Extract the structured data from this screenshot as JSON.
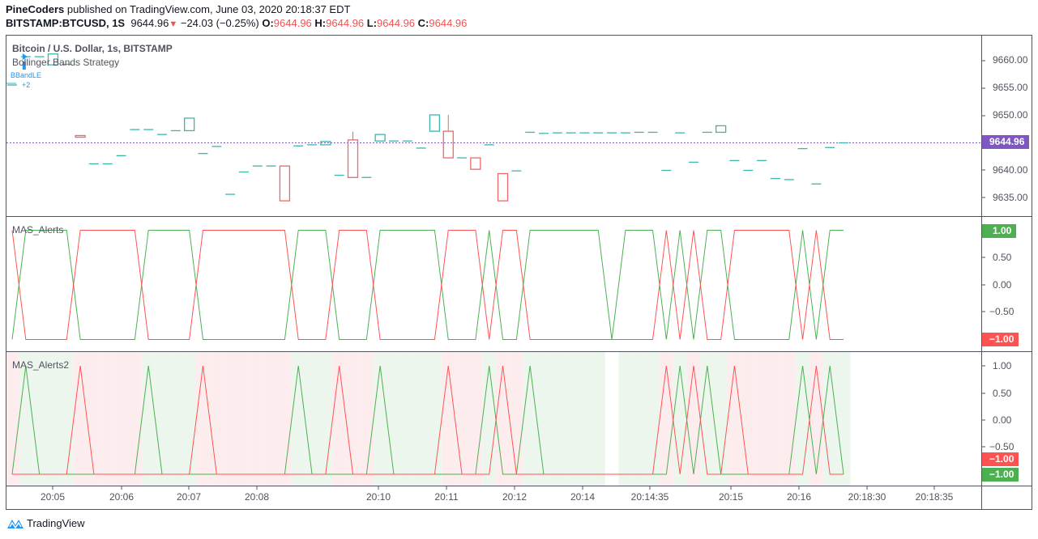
{
  "header": {
    "author": "PineCoders",
    "published_text": "published on TradingView.com, June 03, 2020 20:18:37 EDT",
    "symbol": "BITSTAMP:BTCUSD, 1S",
    "last": "9644.96",
    "change": "−24.03 (−0.25%)",
    "o_label": "O:",
    "o": "9644.96",
    "h_label": "H:",
    "h": "9644.96",
    "l_label": "L:",
    "l": "9644.96",
    "c_label": "C:",
    "c": "9644.96"
  },
  "main_pane": {
    "title": "Bitcoin / U.S. Dollar, 1s, BITSTAMP",
    "study": "Bollinger Bands Strategy",
    "marker_label": "BBandLE",
    "marker_count": "+2",
    "price_labels": [
      "9660.00",
      "9655.00",
      "9650.00",
      "9640.00",
      "9635.00"
    ],
    "last_price_badge": "9644.96"
  },
  "pane2": {
    "title": "MAS_Alerts",
    "axis_labels": [
      "0.50",
      "0.00",
      "−0.50"
    ],
    "green_badge": "1.00",
    "red_badge": "−1.00"
  },
  "pane3": {
    "title": "MAS_Alerts2",
    "axis_labels": [
      "1.00",
      "0.50",
      "0.00",
      "−0.50"
    ],
    "red_badge": "−1.00",
    "green_badge": "−1.00"
  },
  "time_axis": [
    "20:05",
    "20:06",
    "20:07",
    "20:08",
    "20:10",
    "20:11",
    "20:12",
    "20:14",
    "20:14:35",
    "20:15",
    "20:16",
    "20:18:30",
    "20:18:35"
  ],
  "footer": {
    "brand": "TradingView"
  },
  "colors": {
    "up": "#3fb5a9",
    "down": "#e86a6a",
    "last_price": "#7e57c2",
    "green_line": "#4caf50",
    "red_line": "#ff5252",
    "green_bg": "#edf6ec",
    "red_bg": "#fdeced",
    "marker": "#2196f3"
  },
  "chart_data": {
    "type": "candlestick",
    "last_price": 9644.96,
    "ylim": [
      9632,
      9664
    ],
    "candles_ohlc": [
      [
        9655.6,
        9655.6,
        9655.6,
        9655.6
      ],
      [
        9660.8,
        9660.8,
        9660.8,
        9660.8
      ],
      [
        9660.8,
        9660.8,
        9660.8,
        9660.8
      ],
      [
        9659.3,
        9661.3,
        9659.3,
        9661.3
      ],
      [
        9659.4,
        9659.4,
        9659.4,
        9659.4
      ],
      [
        9646.3,
        9646.3,
        9646.0,
        9646.0
      ],
      [
        9641.1,
        9641.1,
        9641.1,
        9641.1
      ],
      [
        9641.1,
        9641.1,
        9641.1,
        9641.1
      ],
      [
        9642.6,
        9642.6,
        9642.6,
        9642.6
      ],
      [
        9647.4,
        9647.4,
        9647.4,
        9647.4
      ],
      [
        9647.4,
        9647.4,
        9647.4,
        9647.4
      ],
      [
        9646.5,
        9646.5,
        9646.5,
        9646.5
      ],
      [
        9647.2,
        9647.2,
        9647.2,
        9647.2
      ],
      [
        9647.2,
        9649.5,
        9647.2,
        9649.5
      ],
      [
        9643.0,
        9643.0,
        9643.0,
        9643.0
      ],
      [
        9644.3,
        9644.3,
        9644.3,
        9644.3
      ],
      [
        9635.5,
        9635.5,
        9635.5,
        9635.5
      ],
      [
        9639.6,
        9639.6,
        9639.6,
        9639.6
      ],
      [
        9640.7,
        9640.7,
        9640.7,
        9640.7
      ],
      [
        9640.7,
        9640.7,
        9640.7,
        9640.7
      ],
      [
        9640.7,
        9640.7,
        9634.3,
        9634.3
      ],
      [
        9644.4,
        9644.4,
        9644.4,
        9644.4
      ],
      [
        9644.6,
        9644.6,
        9644.6,
        9644.6
      ],
      [
        9644.6,
        9645.2,
        9644.6,
        9645.2
      ],
      [
        9639.0,
        9639.0,
        9639.0,
        9639.0
      ],
      [
        9645.5,
        9647.0,
        9638.6,
        9638.6
      ],
      [
        9638.6,
        9638.6,
        9638.6,
        9638.6
      ],
      [
        9645.3,
        9646.5,
        9645.3,
        9646.5
      ],
      [
        9645.3,
        9645.3,
        9645.3,
        9645.3
      ],
      [
        9645.3,
        9645.3,
        9645.3,
        9645.3
      ],
      [
        9644.0,
        9644.0,
        9644.0,
        9644.0
      ],
      [
        9647.1,
        9650.1,
        9647.1,
        9650.1
      ],
      [
        9647.1,
        9650.1,
        9642.2,
        9642.2
      ],
      [
        9642.2,
        9642.2,
        9642.2,
        9642.2
      ],
      [
        9642.2,
        9642.2,
        9640.1,
        9640.1
      ],
      [
        9644.6,
        9644.6,
        9644.6,
        9644.6
      ],
      [
        9639.3,
        9639.3,
        9634.3,
        9634.3
      ],
      [
        9639.8,
        9639.8,
        9639.8,
        9639.8
      ],
      [
        9646.9,
        9646.9,
        9646.9,
        9646.9
      ],
      [
        9646.7,
        9646.7,
        9646.7,
        9646.7
      ],
      [
        9646.8,
        9646.8,
        9646.8,
        9646.8
      ],
      [
        9646.8,
        9646.8,
        9646.8,
        9646.8
      ],
      [
        9646.8,
        9646.8,
        9646.8,
        9646.8
      ],
      [
        9646.8,
        9646.8,
        9646.8,
        9646.8
      ],
      [
        9646.8,
        9646.8,
        9646.8,
        9646.8
      ],
      [
        9646.8,
        9646.8,
        9646.8,
        9646.8
      ],
      [
        9646.9,
        9646.9,
        9646.9,
        9646.9
      ],
      [
        9646.9,
        9646.9,
        9646.9,
        9646.9
      ],
      [
        9639.9,
        9639.9,
        9639.9,
        9639.9
      ],
      [
        9646.8,
        9646.8,
        9646.8,
        9646.8
      ],
      [
        9641.4,
        9641.4,
        9641.4,
        9641.4
      ],
      [
        9646.9,
        9646.9,
        9646.9,
        9646.9
      ],
      [
        9646.9,
        9648.1,
        9646.9,
        9648.1
      ],
      [
        9641.7,
        9641.7,
        9641.7,
        9641.7
      ],
      [
        9639.9,
        9639.9,
        9639.9,
        9639.9
      ],
      [
        9641.7,
        9641.7,
        9641.7,
        9641.7
      ],
      [
        9638.4,
        9638.4,
        9638.4,
        9638.4
      ],
      [
        9638.2,
        9638.2,
        9638.2,
        9638.2
      ],
      [
        9643.9,
        9643.9,
        9643.9,
        9643.9
      ],
      [
        9637.4,
        9637.4,
        9637.4,
        9637.4
      ],
      [
        9644.1,
        9644.1,
        9644.1,
        9644.1
      ],
      [
        9644.96,
        9644.96,
        9644.96,
        9644.96
      ]
    ],
    "mas_alerts_green": [
      -1,
      1,
      1,
      1,
      1,
      -1,
      -1,
      -1,
      -1,
      -1,
      1,
      1,
      1,
      1,
      -1,
      -1,
      -1,
      -1,
      -1,
      -1,
      -1,
      1,
      1,
      1,
      -1,
      -1,
      -1,
      1,
      1,
      1,
      1,
      1,
      -1,
      -1,
      -1,
      1,
      -1,
      -1,
      1,
      1,
      1,
      1,
      1,
      1,
      -1,
      1,
      1,
      1,
      -1,
      1,
      -1,
      1,
      1,
      -1,
      -1,
      -1,
      -1,
      -1,
      1,
      -1,
      1,
      1
    ],
    "mas_alerts_red": [
      1,
      -1,
      -1,
      -1,
      -1,
      1,
      1,
      1,
      1,
      1,
      -1,
      -1,
      -1,
      -1,
      1,
      1,
      1,
      1,
      1,
      1,
      1,
      -1,
      -1,
      -1,
      1,
      1,
      1,
      -1,
      -1,
      -1,
      -1,
      -1,
      1,
      1,
      1,
      -1,
      1,
      1,
      -1,
      -1,
      -1,
      -1,
      -1,
      -1,
      -1,
      -1,
      -1,
      -1,
      1,
      -1,
      1,
      -1,
      -1,
      1,
      1,
      1,
      1,
      1,
      -1,
      1,
      -1,
      -1
    ],
    "mas_alerts2_green_spikes": [
      1,
      10,
      21,
      27,
      35,
      38,
      49,
      51,
      58,
      60
    ],
    "mas_alerts2_red_spikes": [
      5,
      14,
      24,
      32,
      36,
      48,
      50,
      53,
      59
    ],
    "pane2_ylim": [
      -1,
      1
    ],
    "pane3_ylim": [
      -1,
      1
    ]
  }
}
